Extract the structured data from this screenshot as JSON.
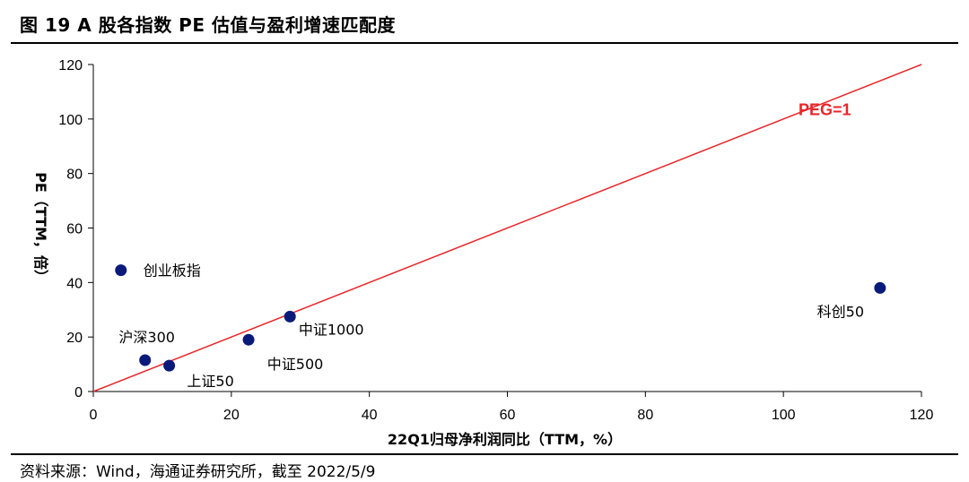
{
  "figure": {
    "title": "图 19 A 股各指数 PE 估值与盈利增速匹配度",
    "source": "资料来源：Wind，海通证券研究所，截至 2022/5/9"
  },
  "chart_data": {
    "type": "scatter",
    "xlabel": "22Q1归母净利润同比（TTM，%）",
    "ylabel": "PE（TTM，倍）",
    "xlim": [
      0,
      120
    ],
    "ylim": [
      0,
      120
    ],
    "xticks": [
      0,
      20,
      40,
      60,
      80,
      100,
      120
    ],
    "yticks": [
      0,
      20,
      40,
      60,
      80,
      100,
      120
    ],
    "grid": false,
    "point_color": "#0a1a7a",
    "points": [
      {
        "label": "创业板指",
        "x": 4,
        "y": 44.5
      },
      {
        "label": "沪深300",
        "x": 7.5,
        "y": 11.5
      },
      {
        "label": "上证50",
        "x": 11,
        "y": 9.5
      },
      {
        "label": "中证500",
        "x": 22.5,
        "y": 19
      },
      {
        "label": "中证1000",
        "x": 28.5,
        "y": 27.5
      },
      {
        "label": "科创50",
        "x": 114,
        "y": 38
      }
    ],
    "reference_line": {
      "label": "PEG=1",
      "color": "#e8262a",
      "x": [
        0,
        120
      ],
      "y": [
        0,
        120
      ]
    }
  }
}
